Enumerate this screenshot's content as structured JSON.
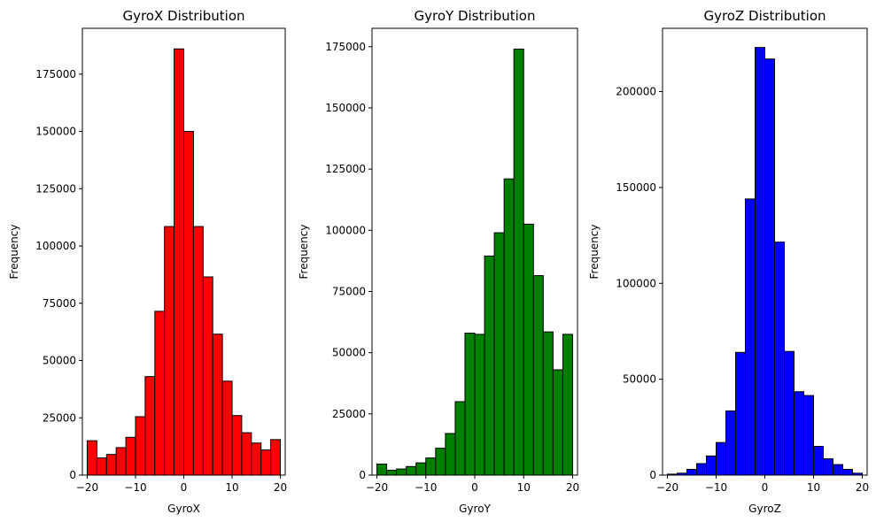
{
  "chart_data": [
    {
      "type": "bar",
      "title": "GyroX Distribution",
      "xlabel": "GyroX",
      "ylabel": "Frequency",
      "color": "#ff0000",
      "edgecolor": "#000000",
      "bin_edges": [
        -20,
        -18,
        -16,
        -14,
        -12,
        -10,
        -8,
        -6,
        -4,
        -2,
        0,
        2,
        4,
        6,
        8,
        10,
        12,
        14,
        16,
        18,
        20
      ],
      "values": [
        15000,
        7500,
        9000,
        12000,
        16500,
        25500,
        43000,
        71500,
        108500,
        186000,
        150000,
        108500,
        86500,
        61500,
        41000,
        26000,
        18500,
        14000,
        11000,
        15500
      ],
      "xlim": [
        -21,
        21
      ],
      "ylim": [
        0,
        195000
      ],
      "xticks": [
        -20,
        -10,
        0,
        10,
        20
      ],
      "yticks": [
        0,
        25000,
        50000,
        75000,
        100000,
        125000,
        150000,
        175000
      ]
    },
    {
      "type": "bar",
      "title": "GyroY Distribution",
      "xlabel": "GyroY",
      "ylabel": "Frequency",
      "color": "#008000",
      "edgecolor": "#000000",
      "bin_edges": [
        -20,
        -18,
        -16,
        -14,
        -12,
        -10,
        -8,
        -6,
        -4,
        -2,
        0,
        2,
        4,
        6,
        8,
        10,
        12,
        14,
        16,
        18,
        20
      ],
      "values": [
        4500,
        2000,
        2500,
        3500,
        5000,
        7000,
        11000,
        17000,
        30000,
        58000,
        57500,
        89500,
        99000,
        121000,
        174000,
        102500,
        81500,
        58500,
        43000,
        57500
      ],
      "xlim": [
        -21,
        21
      ],
      "ylim": [
        0,
        182500
      ],
      "xticks": [
        -20,
        -10,
        0,
        10,
        20
      ],
      "yticks": [
        0,
        25000,
        50000,
        75000,
        100000,
        125000,
        150000,
        175000
      ]
    },
    {
      "type": "bar",
      "title": "GyroZ Distribution",
      "xlabel": "GyroZ",
      "ylabel": "Frequency",
      "color": "#0000ff",
      "edgecolor": "#000000",
      "bin_edges": [
        -20,
        -18,
        -16,
        -14,
        -12,
        -10,
        -8,
        -6,
        -4,
        -2,
        0,
        2,
        4,
        6,
        8,
        10,
        12,
        14,
        16,
        18,
        20
      ],
      "values": [
        500,
        1000,
        3000,
        6000,
        10000,
        17000,
        33500,
        64000,
        144000,
        223000,
        217000,
        121500,
        64500,
        43500,
        41500,
        15000,
        8500,
        5500,
        3000,
        1000
      ],
      "xlim": [
        -21,
        21
      ],
      "ylim": [
        0,
        233000
      ],
      "xticks": [
        -20,
        -10,
        0,
        10,
        20
      ],
      "yticks": [
        0,
        50000,
        100000,
        150000,
        200000
      ]
    }
  ]
}
